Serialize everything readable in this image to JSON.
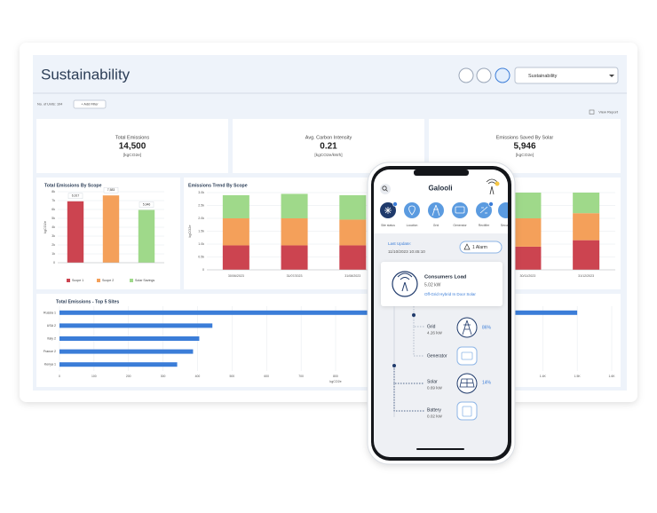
{
  "header": {
    "title": "Sustainability",
    "dropdown": "Sustainability"
  },
  "filters": {
    "units": "No. of Units: 104",
    "add_filter": "+ Add Filter",
    "view_report": "View Report"
  },
  "kpis": [
    {
      "label": "Total Emissions",
      "value": "14,500",
      "unit": "[kgCO2e]"
    },
    {
      "label": "Avg. Carbon Intensity",
      "value": "0.21",
      "unit": "[kgCO2e/kWh]"
    },
    {
      "label": "Emissions Saved By Solar",
      "value": "5,946",
      "unit": "[kgCO2e]"
    }
  ],
  "chart_data": [
    {
      "type": "bar",
      "title": "Total Emissions By Scope",
      "ylabel": "kgCO2e",
      "categories": [
        "Scope 1",
        "Scope 2",
        "Solar Savings"
      ],
      "values": [
        6917,
        7583,
        5946
      ],
      "value_labels": [
        "6,917",
        "7,583",
        "5,946"
      ],
      "colors": [
        "#cc4450",
        "#f4a05a",
        "#9fd98a"
      ],
      "ylim": [
        0,
        8000
      ],
      "yticks": [
        0,
        {
          "value": 1000,
          "label": "1k"
        },
        {
          "value": 2000,
          "label": "2k"
        },
        {
          "value": 3000,
          "label": "3k"
        },
        {
          "value": 4000,
          "label": "4k"
        },
        {
          "value": 5000,
          "label": "5k"
        },
        {
          "value": 6000,
          "label": "6k"
        },
        {
          "value": 7000,
          "label": "7k"
        },
        {
          "value": 8000,
          "label": "8k"
        }
      ],
      "grid": true
    },
    {
      "type": "stacked",
      "title": "Emissions Trend By Scope",
      "ylabel": "kgCO2e",
      "categories": [
        "30/06/2023",
        "31/07/2023",
        "31/08/2023",
        null,
        null,
        "30/11/2023",
        "31/12/2023"
      ],
      "series": [
        {
          "color": "#cc4450",
          "values": [
            950,
            950,
            950,
            null,
            null,
            900,
            1150
          ]
        },
        {
          "color": "#f4a05a",
          "values": [
            1050,
            1050,
            1000,
            null,
            null,
            1100,
            1050
          ]
        },
        {
          "color": "#9fd98a",
          "values": [
            900,
            950,
            950,
            null,
            null,
            1000,
            800
          ]
        }
      ],
      "ylim": [
        0,
        3000
      ],
      "yticks": [
        0,
        {
          "value": 500,
          "label": "0.5k"
        },
        {
          "value": 1000,
          "label": "1.0k"
        },
        {
          "value": 1500,
          "label": "1.5k"
        },
        {
          "value": 2000,
          "label": "2.0k"
        },
        {
          "value": 2500,
          "label": "2.5k"
        },
        {
          "value": 3000,
          "label": "3.0k"
        }
      ],
      "grid": true
    },
    {
      "type": "barh",
      "title": "Total Emissions - Top 5 Sites",
      "xlabel": "kgCO2e",
      "categories": [
        "Russia 1",
        "USA 2",
        "Italy 2",
        "France 2",
        "Kenya 1"
      ],
      "values": [
        1500,
        443,
        405,
        387,
        341
      ],
      "color": "#3b7dd8",
      "xlim": [
        0,
        1600
      ],
      "xticks": [
        0,
        100,
        200,
        300,
        400,
        500,
        600,
        700,
        800,
        900,
        {
          "value": 1000,
          "label": "1K"
        },
        {
          "value": 1100,
          "label": "1.1K"
        },
        {
          "value": 1200,
          "label": "1.2K"
        },
        {
          "value": 1300,
          "label": "1.3K"
        },
        {
          "value": 1400,
          "label": "1.4K"
        },
        {
          "value": 1500,
          "label": "1.5K"
        },
        {
          "value": 1600,
          "label": "1.6K"
        }
      ],
      "grid": true
    }
  ],
  "phone": {
    "app_name": "Galooli",
    "menu": [
      "Site status",
      "Location",
      "Grid",
      "Generator",
      "Rectifier",
      "Security"
    ],
    "last_update_label": "Last Update:",
    "last_update": "11/10/2023 10:45:10",
    "alarm": "1 Alarm",
    "load": {
      "title": "Consumers Load",
      "value": "5.02 kW",
      "site_type": "Off-Grid Hybrid In Door Solar"
    },
    "sources": [
      {
        "label": "Grid",
        "value": "4.26 kW",
        "share": "86%"
      },
      {
        "label": "Generator"
      },
      {
        "label": "Solar",
        "value": "0.69 kW",
        "share": "14%"
      },
      {
        "label": "Battery",
        "value": "0.02 kW"
      }
    ]
  }
}
